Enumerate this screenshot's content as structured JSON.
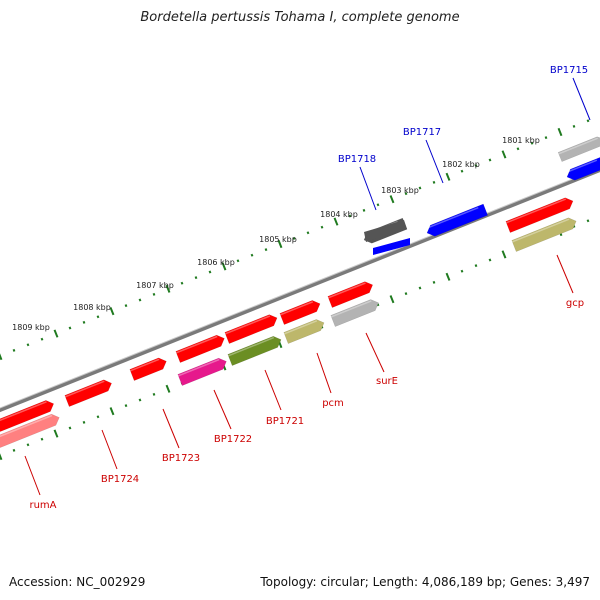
{
  "title": "Bordetella pertussis Tohama I, complete genome",
  "footer": {
    "accession": "Accession: NC_002929",
    "summary": "Topology: circular; Length: 4,086,189 bp; Genes: 3,497"
  },
  "colors": {
    "backbone": "#7a7a7a",
    "scale_ticks": "#1f7a1f",
    "label_top": "#0000cc",
    "label_bottom": "#cc0000",
    "red": "#ff0000",
    "blue": "#0000ff",
    "dark_gray": "#555555",
    "light_gray": "#b3b3b3",
    "pink": "#ff8080",
    "magenta": "#e6198c",
    "olive": "#6b8e23",
    "khaki": "#bdb76b"
  },
  "kbp_labels": [
    "1801 kbp",
    "1802 kbp",
    "1803 kbp",
    "1804 kbp",
    "1805 kbp",
    "1806 kbp",
    "1807 kbp",
    "1808 kbp",
    "1809 kbp"
  ],
  "genes": [
    {
      "track": "+1",
      "color": "gray_light",
      "label": ""
    },
    {
      "track": "+1",
      "color": "red",
      "label": ""
    },
    {
      "track": "+1",
      "color": "red",
      "label": ""
    },
    {
      "track": "+1",
      "color": "red",
      "label": ""
    },
    {
      "track": "+1",
      "color": "red",
      "label": ""
    },
    {
      "track": "+1",
      "color": "red",
      "label": ""
    },
    {
      "track": "+1",
      "color": "red",
      "label": ""
    },
    {
      "track": "+1",
      "color": "red",
      "label": ""
    },
    {
      "track": "+1",
      "color": "red",
      "label": ""
    },
    {
      "track": "-1",
      "color": "blue",
      "label": ""
    },
    {
      "track": "-1",
      "color": "dark_gray",
      "label": ""
    },
    {
      "track": "-1",
      "color": "blue",
      "label": ""
    },
    {
      "track": "+2",
      "color": "khaki",
      "label": ""
    },
    {
      "track": "+2",
      "color": "gray_light",
      "label": ""
    },
    {
      "track": "+2",
      "color": "khaki",
      "label": ""
    },
    {
      "track": "+2",
      "color": "olive",
      "label": ""
    },
    {
      "track": "+2",
      "color": "magenta",
      "label": ""
    },
    {
      "track": "+2",
      "color": "pink",
      "label": ""
    }
  ],
  "top_labels": [
    "BP1715",
    "BP1717",
    "BP1718"
  ],
  "bottom_labels": [
    "gcp",
    "surE",
    "pcm",
    "BP1721",
    "BP1722",
    "BP1723",
    "BP1724",
    "rumA"
  ]
}
